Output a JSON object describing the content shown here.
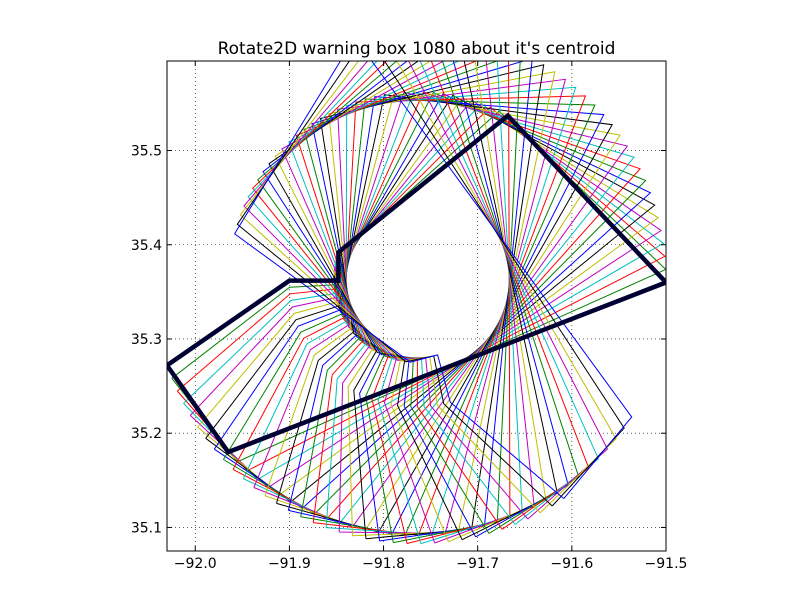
{
  "chart_data": {
    "type": "line",
    "title": "Rotate2D warning box 1080 about it's centroid",
    "xlabel": "",
    "ylabel": "",
    "xlim": [
      -92.03,
      -91.5
    ],
    "ylim": [
      35.075,
      35.595
    ],
    "xticks": [
      -92.0,
      -91.9,
      -91.8,
      -91.7,
      -91.6,
      -91.5
    ],
    "xtick_labels": [
      "−92.0",
      "−91.9",
      "−91.8",
      "−91.7",
      "−91.6",
      "−91.5"
    ],
    "yticks": [
      35.1,
      35.2,
      35.3,
      35.4,
      35.5
    ],
    "ytick_labels": [
      "35.1",
      "35.2",
      "35.3",
      "35.4",
      "35.5"
    ],
    "grid": true,
    "polygon": {
      "x": [
        -92.03,
        -91.9,
        -91.848,
        -91.848,
        -91.668,
        -91.5,
        -91.965,
        -92.03
      ],
      "y": [
        35.272,
        35.362,
        35.362,
        35.392,
        35.537,
        35.36,
        35.18,
        35.272
      ]
    },
    "pivot": {
      "x": -91.765,
      "y": 35.363
    },
    "rotation_start_deg": 0,
    "rotation_step_deg": 3,
    "rotation_count": 36,
    "colors": [
      "#0000ff",
      "#008000",
      "#ff0000",
      "#00bfbf",
      "#bf00bf",
      "#bfbf00",
      "#000000"
    ]
  }
}
